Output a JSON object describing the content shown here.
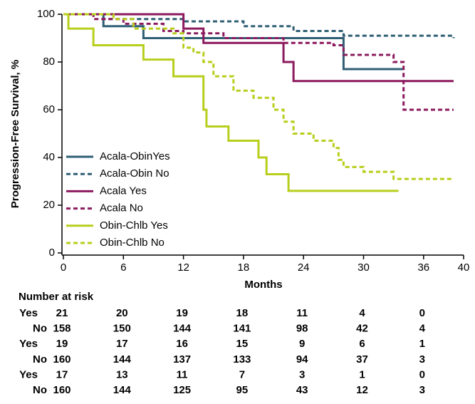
{
  "chart_data": {
    "type": "step",
    "y_label": "Progression-Free Survival, %",
    "x_label": "Months",
    "xlim": [
      0,
      40
    ],
    "xticks": [
      0,
      6,
      12,
      18,
      24,
      30,
      36,
      40
    ],
    "ylim": [
      0,
      100
    ],
    "yticks": [
      0,
      20,
      40,
      60,
      80,
      100
    ],
    "series": [
      {
        "name": "Acala-ObinYes",
        "color": "#2f5f74",
        "dashed": false,
        "x": [
          0,
          4,
          8,
          28,
          34
        ],
        "values": [
          100,
          95,
          90,
          77,
          77
        ]
      },
      {
        "name": "Acala-Obin No",
        "color": "#2f5f74",
        "dashed": true,
        "x": [
          0,
          4,
          12,
          18,
          23,
          28,
          39
        ],
        "values": [
          100,
          98,
          97,
          95,
          93,
          91,
          90
        ]
      },
      {
        "name": "Acala Yes",
        "color": "#8c1a5e",
        "dashed": false,
        "x": [
          0,
          12,
          14,
          22,
          23,
          39
        ],
        "values": [
          100,
          94,
          88,
          80,
          72,
          72
        ]
      },
      {
        "name": "Acala No",
        "color": "#8c1a5e",
        "dashed": true,
        "x": [
          0,
          3,
          6,
          10,
          12,
          16,
          22,
          27,
          28,
          33,
          34,
          39
        ],
        "values": [
          100,
          98,
          96,
          93,
          92,
          90,
          88,
          87,
          83,
          80,
          60,
          60
        ]
      },
      {
        "name": "Obin-Chlb Yes",
        "color": "#b8ce1c",
        "dashed": false,
        "x": [
          0,
          0.5,
          3,
          8,
          11,
          14,
          14.3,
          16.5,
          19.5,
          20.3,
          22.5,
          33.5
        ],
        "values": [
          100,
          94,
          87,
          81,
          74,
          60,
          53,
          47,
          40,
          33,
          26,
          26
        ]
      },
      {
        "name": "Obin-Chlb No",
        "color": "#b8ce1c",
        "dashed": true,
        "x": [
          0,
          5,
          7,
          11,
          12,
          13,
          14,
          15,
          17,
          19,
          21,
          22,
          23,
          25,
          27,
          27.5,
          28,
          30,
          33,
          35,
          39
        ],
        "values": [
          100,
          98,
          94,
          92,
          86,
          84,
          80,
          74,
          68,
          65,
          60,
          55,
          50,
          47,
          44,
          39,
          36,
          34,
          31,
          31,
          31
        ]
      }
    ],
    "risk_table": {
      "title": "Number at risk",
      "times": [
        0,
        6,
        12,
        18,
        24,
        30,
        36
      ],
      "rows": [
        {
          "label": "Yes",
          "color": "#2f5f74",
          "values": [
            21,
            20,
            19,
            18,
            11,
            4,
            0
          ]
        },
        {
          "label": "No",
          "color": "#2f5f74",
          "values": [
            158,
            150,
            144,
            141,
            98,
            42,
            4
          ]
        },
        {
          "label": "Yes",
          "color": "#8c1a5e",
          "values": [
            19,
            17,
            16,
            15,
            9,
            6,
            1
          ]
        },
        {
          "label": "No",
          "color": "#8c1a5e",
          "values": [
            160,
            144,
            137,
            133,
            94,
            37,
            3
          ]
        },
        {
          "label": "Yes",
          "color": "#b8ce1c",
          "values": [
            17,
            13,
            11,
            7,
            3,
            1,
            0
          ]
        },
        {
          "label": "No",
          "color": "#b8ce1c",
          "values": [
            160,
            144,
            125,
            95,
            43,
            12,
            3
          ]
        }
      ]
    }
  }
}
